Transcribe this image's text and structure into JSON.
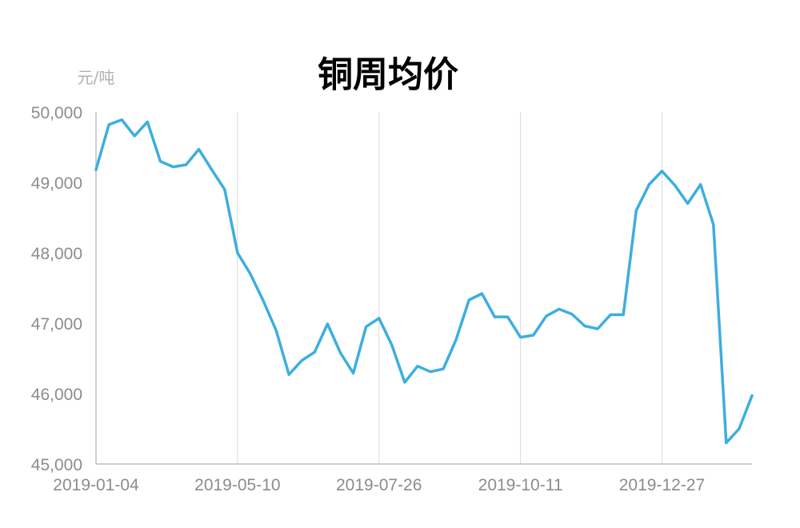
{
  "chart_data": {
    "type": "line",
    "title": "铜周均价",
    "unit_label": "元/吨",
    "xlabel": "",
    "ylabel": "",
    "ylim": [
      45000,
      50000
    ],
    "yticks": [
      45000,
      46000,
      47000,
      48000,
      49000,
      50000
    ],
    "ytick_labels": [
      "45,000",
      "46,000",
      "47,000",
      "48,000",
      "49,000",
      "50,000"
    ],
    "x_tick_labels": [
      "2019-01-04",
      "2019-05-10",
      "2019-07-26",
      "2019-10-11",
      "2019-12-27"
    ],
    "x_tick_indices": [
      0,
      11,
      22,
      33,
      44
    ],
    "grid": {
      "vertical": true,
      "horizontal": false
    },
    "series": [
      {
        "color": "#3daee0",
        "values": [
          49180,
          49820,
          49890,
          49660,
          49860,
          49300,
          49220,
          49250,
          49470,
          49180,
          48900,
          48000,
          47700,
          47320,
          46900,
          46270,
          46470,
          46590,
          46990,
          46580,
          46290,
          46950,
          47070,
          46690,
          46160,
          46390,
          46310,
          46350,
          46770,
          47330,
          47420,
          47090,
          47090,
          46800,
          46830,
          47100,
          47200,
          47130,
          46960,
          46920,
          47120,
          47120,
          48600,
          48970,
          49160,
          48960,
          48700,
          48970,
          48400,
          45300,
          45500,
          45970
        ]
      }
    ]
  }
}
